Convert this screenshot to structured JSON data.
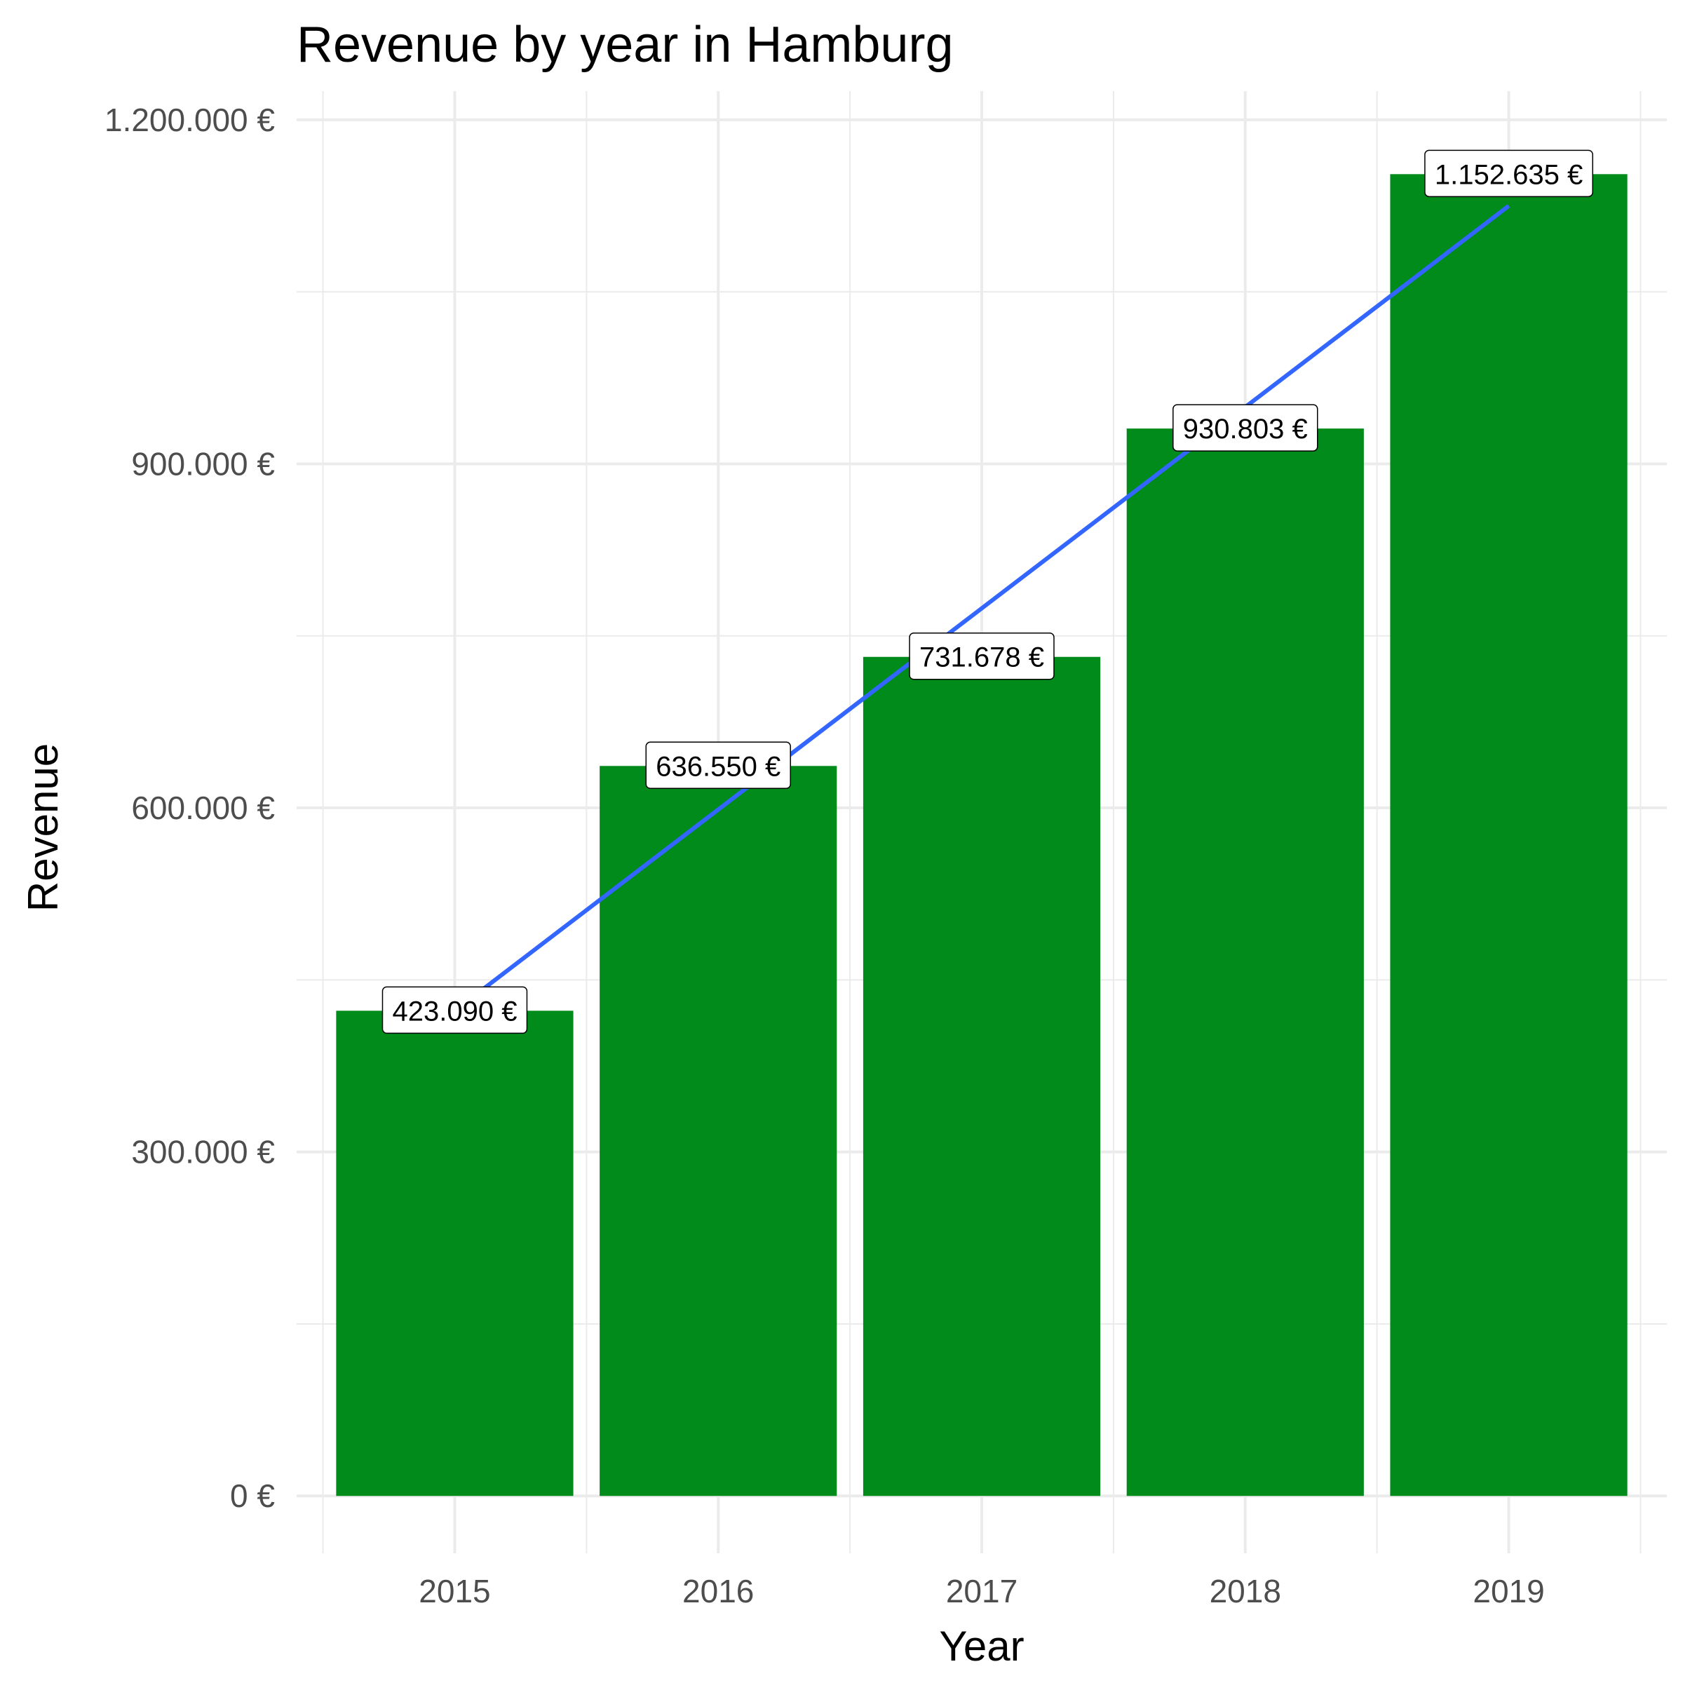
{
  "chart_data": {
    "type": "bar",
    "title": "Revenue by year in Hamburg",
    "xlabel": "Year",
    "ylabel": "Revenue",
    "categories": [
      "2015",
      "2016",
      "2017",
      "2018",
      "2019"
    ],
    "values": [
      423090,
      636550,
      731678,
      930803,
      1152635
    ],
    "data_labels": [
      "423.090 €",
      "636.550 €",
      "731.678 €",
      "930.803 €",
      "1.152.635 €"
    ],
    "ylim": [
      -50000,
      1225000
    ],
    "y_ticks": [
      0,
      300000,
      600000,
      900000,
      1200000
    ],
    "y_tick_labels": [
      "0 €",
      "300.000 €",
      "600.000 €",
      "900.000 €",
      "1.200.000 €"
    ],
    "y_minor_ticks": [
      150000,
      450000,
      750000,
      1050000
    ],
    "grid": true,
    "legend": "none",
    "trend_line": {
      "type": "linear",
      "x": [
        "2015",
        "2019"
      ],
      "y": [
        423090,
        1125000
      ]
    },
    "colors": {
      "bar": "#008b1b",
      "trend_line": "#3366ff",
      "grid": "#ebebeb",
      "tick_label": "#4d4d4d"
    }
  }
}
